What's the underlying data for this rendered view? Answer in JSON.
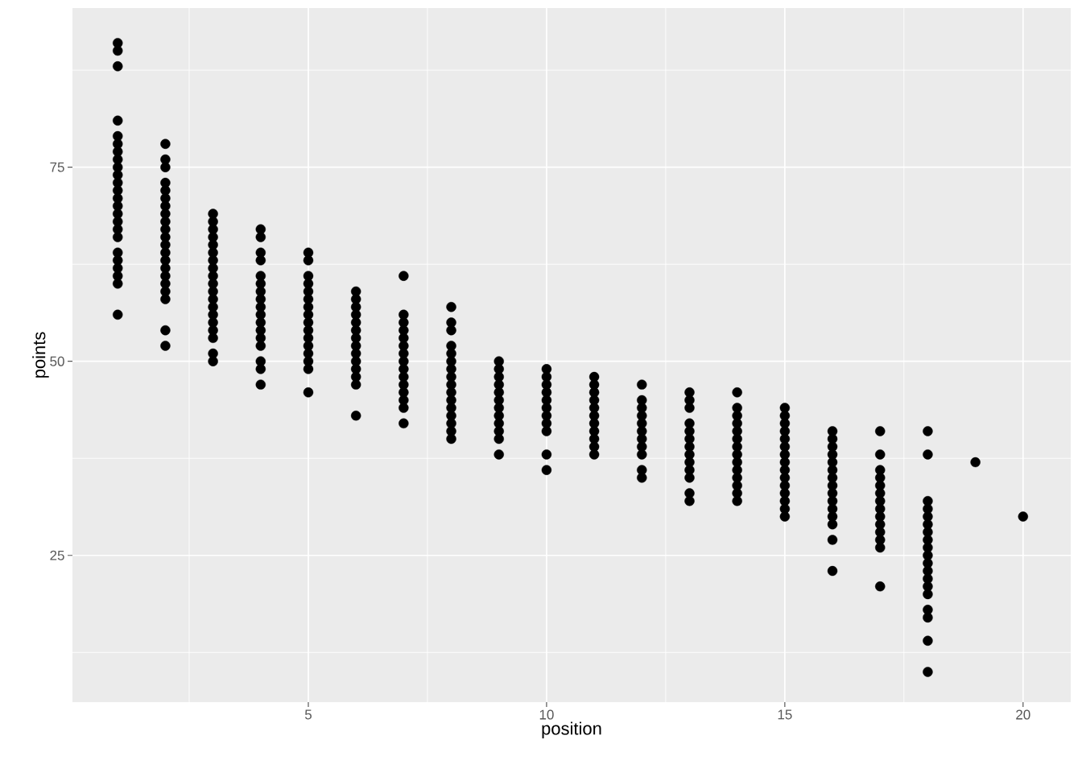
{
  "chart_data": {
    "type": "scatter",
    "xlabel": "position",
    "ylabel": "points",
    "xlim": [
      0.05,
      21.0
    ],
    "ylim": [
      6.1,
      95.5
    ],
    "xticks": [
      5,
      10,
      15,
      20
    ],
    "yticks": [
      25,
      50,
      75
    ],
    "grid": true,
    "marker": "circle",
    "color": "#000000",
    "x": [
      1,
      1,
      1,
      1,
      1,
      1,
      1,
      1,
      1,
      1,
      1,
      1,
      1,
      1,
      1,
      1,
      1,
      1,
      1,
      1,
      1,
      1,
      1,
      1,
      2,
      2,
      2,
      2,
      2,
      2,
      2,
      2,
      2,
      2,
      2,
      2,
      2,
      2,
      2,
      2,
      2,
      2,
      2,
      2,
      2,
      3,
      3,
      3,
      3,
      3,
      3,
      3,
      3,
      3,
      3,
      3,
      3,
      3,
      3,
      3,
      3,
      3,
      3,
      3,
      4,
      4,
      4,
      4,
      4,
      4,
      4,
      4,
      4,
      4,
      4,
      4,
      4,
      4,
      4,
      4,
      4,
      5,
      5,
      5,
      5,
      5,
      5,
      5,
      5,
      5,
      5,
      5,
      5,
      5,
      5,
      5,
      5,
      6,
      6,
      6,
      6,
      6,
      6,
      6,
      6,
      6,
      6,
      6,
      6,
      6,
      6,
      7,
      7,
      7,
      7,
      7,
      7,
      7,
      7,
      7,
      7,
      7,
      7,
      7,
      7,
      7,
      8,
      8,
      8,
      8,
      8,
      8,
      8,
      8,
      8,
      8,
      8,
      8,
      8,
      8,
      8,
      8,
      9,
      9,
      9,
      9,
      9,
      9,
      9,
      9,
      9,
      9,
      9,
      9,
      10,
      10,
      10,
      10,
      10,
      10,
      10,
      10,
      10,
      10,
      10,
      11,
      11,
      11,
      11,
      11,
      11,
      11,
      11,
      11,
      11,
      11,
      12,
      12,
      12,
      12,
      12,
      12,
      12,
      12,
      12,
      12,
      12,
      13,
      13,
      13,
      13,
      13,
      13,
      13,
      13,
      13,
      13,
      13,
      13,
      13,
      14,
      14,
      14,
      14,
      14,
      14,
      14,
      14,
      14,
      14,
      14,
      14,
      14,
      14,
      15,
      15,
      15,
      15,
      15,
      15,
      15,
      15,
      15,
      15,
      15,
      15,
      15,
      15,
      15,
      16,
      16,
      16,
      16,
      16,
      16,
      16,
      16,
      16,
      16,
      16,
      16,
      16,
      16,
      16,
      17,
      17,
      17,
      17,
      17,
      17,
      17,
      17,
      17,
      17,
      17,
      17,
      17,
      17,
      18,
      18,
      18,
      18,
      18,
      18,
      18,
      18,
      18,
      18,
      18,
      18,
      18,
      18,
      18,
      18,
      18,
      18,
      18,
      19,
      20
    ],
    "values": [
      91,
      90,
      88,
      81,
      79,
      78,
      77,
      76,
      75,
      74,
      73,
      72,
      71,
      70,
      69,
      68,
      67,
      66,
      64,
      63,
      62,
      61,
      60,
      56,
      78,
      76,
      75,
      73,
      72,
      71,
      70,
      69,
      68,
      67,
      66,
      65,
      64,
      63,
      62,
      61,
      60,
      59,
      58,
      54,
      52,
      69,
      68,
      67,
      66,
      65,
      64,
      63,
      62,
      61,
      60,
      59,
      58,
      57,
      56,
      55,
      54,
      53,
      51,
      50,
      67,
      66,
      64,
      63,
      61,
      60,
      59,
      58,
      57,
      56,
      55,
      54,
      53,
      52,
      50,
      49,
      47,
      64,
      63,
      61,
      60,
      59,
      58,
      57,
      56,
      55,
      54,
      53,
      52,
      51,
      50,
      49,
      46,
      59,
      58,
      57,
      56,
      55,
      54,
      53,
      52,
      51,
      50,
      49,
      48,
      47,
      43,
      61,
      56,
      55,
      54,
      53,
      52,
      51,
      50,
      49,
      48,
      47,
      46,
      45,
      44,
      42,
      57,
      55,
      54,
      52,
      51,
      50,
      49,
      48,
      47,
      46,
      45,
      44,
      43,
      42,
      41,
      40,
      50,
      49,
      48,
      47,
      46,
      45,
      44,
      43,
      42,
      41,
      40,
      38,
      49,
      48,
      47,
      46,
      45,
      44,
      43,
      42,
      41,
      38,
      36,
      48,
      47,
      46,
      45,
      44,
      43,
      42,
      41,
      40,
      39,
      38,
      47,
      45,
      44,
      43,
      42,
      41,
      40,
      39,
      38,
      36,
      35,
      46,
      45,
      44,
      42,
      41,
      40,
      39,
      38,
      37,
      36,
      35,
      33,
      32,
      46,
      44,
      43,
      42,
      41,
      40,
      39,
      38,
      37,
      36,
      35,
      34,
      33,
      32,
      44,
      43,
      42,
      41,
      40,
      39,
      38,
      37,
      36,
      35,
      34,
      33,
      32,
      31,
      30,
      41,
      40,
      39,
      38,
      37,
      36,
      35,
      34,
      33,
      32,
      31,
      30,
      29,
      27,
      23,
      41,
      38,
      36,
      35,
      34,
      33,
      32,
      31,
      30,
      29,
      28,
      27,
      26,
      21,
      41,
      38,
      32,
      31,
      30,
      29,
      28,
      27,
      26,
      25,
      24,
      23,
      22,
      21,
      20,
      18,
      17,
      14,
      10,
      37,
      30
    ]
  }
}
